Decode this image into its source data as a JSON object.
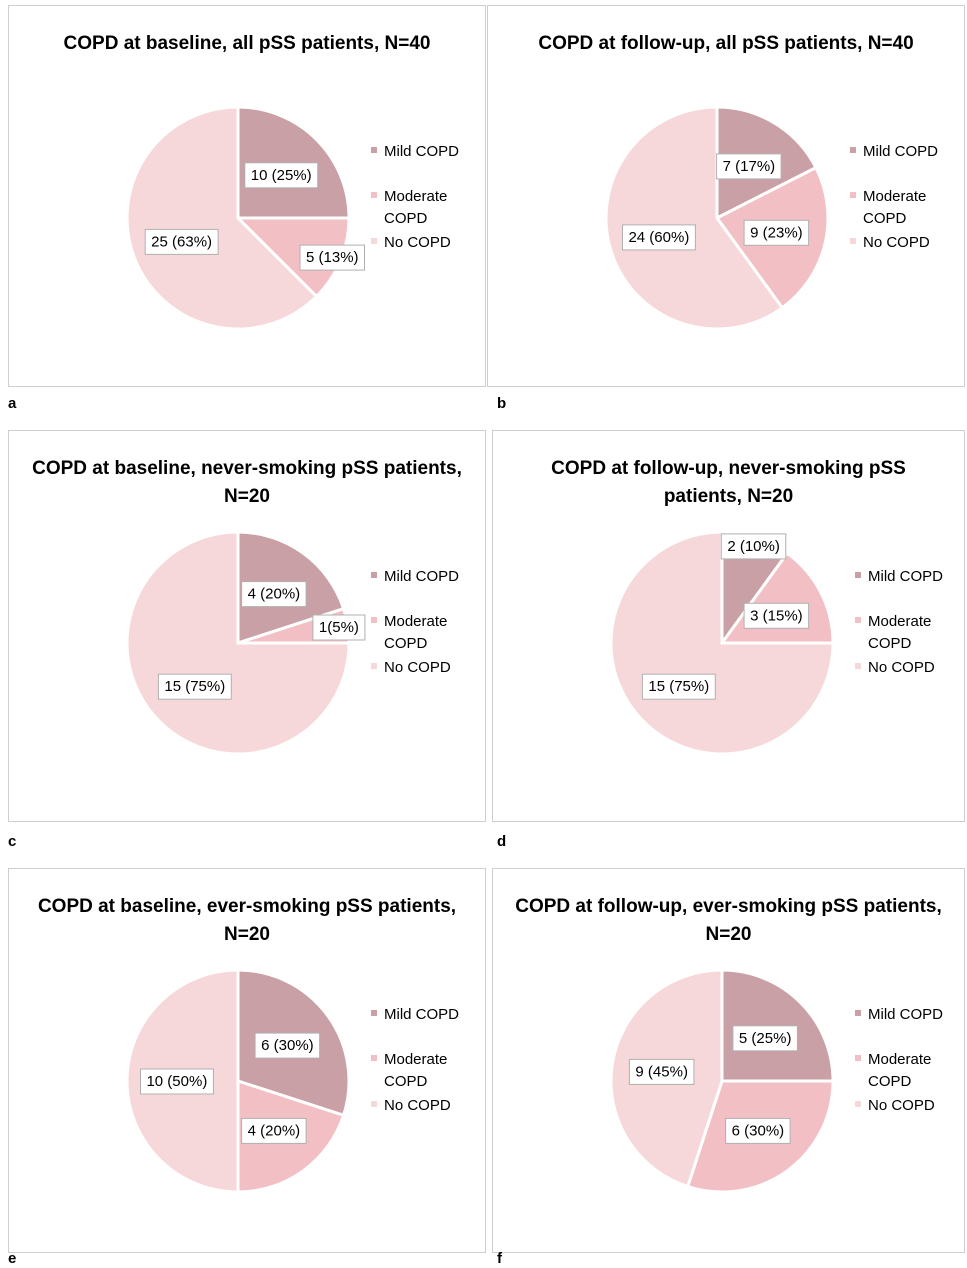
{
  "colors": {
    "mild": "#c9a0a6",
    "moderate": "#f2c0c4",
    "none": "#f7d8da",
    "border": "#cfcfcf"
  },
  "legend": [
    "Mild COPD",
    "Moderate COPD",
    "No COPD"
  ],
  "chart_data": [
    {
      "type": "pie",
      "letter": "a",
      "title": "COPD at baseline, all pSS patients, N=40",
      "categories": [
        "Mild COPD",
        "Moderate COPD",
        "No COPD"
      ],
      "values": [
        10,
        5,
        25
      ],
      "labels": [
        "10 (25%)",
        "5 (13%)",
        "25 (63%)"
      ]
    },
    {
      "type": "pie",
      "letter": "b",
      "title": "COPD at follow-up, all pSS patients, N=40",
      "categories": [
        "Mild COPD",
        "Moderate COPD",
        "No COPD"
      ],
      "values": [
        7,
        9,
        24
      ],
      "labels": [
        "7 (17%)",
        "9 (23%)",
        "24 (60%)"
      ]
    },
    {
      "type": "pie",
      "letter": "c",
      "title": "COPD at baseline, never-smoking pSS patients, N=20",
      "categories": [
        "Mild COPD",
        "Moderate COPD",
        "No COPD"
      ],
      "values": [
        4,
        1,
        15
      ],
      "labels": [
        "4 (20%)",
        "1(5%)",
        "15 (75%)"
      ]
    },
    {
      "type": "pie",
      "letter": "d",
      "title": "COPD at follow-up, never-smoking pSS patients, N=20",
      "categories": [
        "Mild COPD",
        "Moderate COPD",
        "No COPD"
      ],
      "values": [
        2,
        3,
        15
      ],
      "labels": [
        "2 (10%)",
        "3 (15%)",
        "15 (75%)"
      ]
    },
    {
      "type": "pie",
      "letter": "e",
      "title": "COPD at baseline, ever-smoking pSS patients, N=20",
      "categories": [
        "Mild COPD",
        "Moderate COPD",
        "No COPD"
      ],
      "values": [
        6,
        4,
        10
      ],
      "labels": [
        "6 (30%)",
        "4 (20%)",
        "10 (50%)"
      ]
    },
    {
      "type": "pie",
      "letter": "f",
      "title": "COPD at follow-up, ever-smoking pSS patients, N=20",
      "categories": [
        "Mild COPD",
        "Moderate COPD",
        "No COPD"
      ],
      "values": [
        5,
        6,
        9
      ],
      "labels": [
        "5 (25%)",
        "6 (30%)",
        "9 (45%)"
      ]
    }
  ]
}
